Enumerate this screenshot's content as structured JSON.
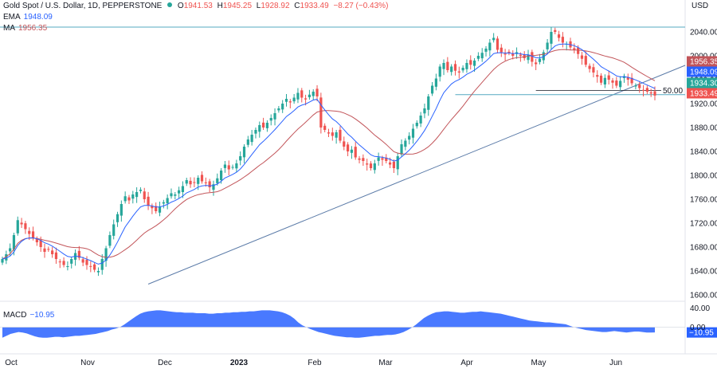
{
  "header": {
    "title": "Gold Spot / U.S. Dollar, 1D, PEPPERSTONE",
    "open_label": "O",
    "open": "1941.53",
    "high_label": "H",
    "high": "1945.25",
    "low_label": "L",
    "low": "1928.92",
    "close_label": "C",
    "close": "1933.49",
    "change": "−8.27 (−0.43%)",
    "currency": "USD"
  },
  "indicators": {
    "ema_label": "EMA",
    "ema_value": "1948.09",
    "ma_label": "MA",
    "ma_value": "1956.35",
    "macd_label": "MACD",
    "macd_value": "−10.95"
  },
  "colors": {
    "up": "#26a69a",
    "down": "#ef5350",
    "ema": "#2962ff",
    "ma": "#c2555a",
    "macd": "#2962ff",
    "trendline": "#5b7ba8",
    "level": "#55a9c2",
    "axis_text": "#131722"
  },
  "chart_data": [
    {
      "type": "candlestick",
      "x_tick_labels": [
        "Oct",
        "Nov",
        "Dec",
        "2023",
        "Feb",
        "Mar",
        "Apr",
        "May",
        "Jun"
      ],
      "ylim": [
        1600,
        2080
      ],
      "y_ticks": [
        "2040.00",
        "2000.00",
        "1960.00",
        "1920.00",
        "1880.00",
        "1840.00",
        "1800.00",
        "1760.00",
        "1720.00",
        "1680.00",
        "1640.00",
        "1600.00"
      ],
      "price_tags": [
        {
          "label": "1956.35",
          "value": 1956.35,
          "color": "#c2555a"
        },
        {
          "label": "1948.09",
          "value": 1948.09,
          "color": "#2962ff"
        },
        {
          "label": "1934.30",
          "value": 1934.3,
          "color": "#26a69a"
        },
        {
          "label": "1933.49",
          "value": 1933.49,
          "color": "#ef5350"
        }
      ],
      "retracement_label": "50.00",
      "close_series": [
        1660,
        1668,
        1678,
        1700,
        1725,
        1718,
        1710,
        1702,
        1695,
        1688,
        1680,
        1672,
        1676,
        1668,
        1660,
        1655,
        1650,
        1648,
        1660,
        1670,
        1662,
        1654,
        1650,
        1648,
        1642,
        1640,
        1660,
        1678,
        1700,
        1718,
        1735,
        1752,
        1765,
        1758,
        1768,
        1772,
        1776,
        1760,
        1750,
        1745,
        1740,
        1748,
        1755,
        1762,
        1770,
        1768,
        1775,
        1782,
        1792,
        1785,
        1788,
        1796,
        1790,
        1787,
        1780,
        1785,
        1795,
        1808,
        1818,
        1810,
        1814,
        1820,
        1832,
        1848,
        1860,
        1868,
        1876,
        1884,
        1880,
        1888,
        1896,
        1904,
        1912,
        1920,
        1928,
        1922,
        1930,
        1938,
        1930,
        1927,
        1935,
        1940,
        1932,
        1880,
        1876,
        1870,
        1866,
        1872,
        1858,
        1848,
        1840,
        1843,
        1830,
        1826,
        1824,
        1818,
        1812,
        1820,
        1830,
        1826,
        1824,
        1818,
        1812,
        1832,
        1852,
        1858,
        1866,
        1878,
        1888,
        1900,
        1912,
        1932,
        1950,
        1962,
        1982,
        1988,
        1976,
        1982,
        1975,
        1972,
        1980,
        1988,
        1985,
        1992,
        2000,
        2005,
        2012,
        2022,
        2030,
        2010,
        2006,
        2002,
        2005,
        2000,
        2006,
        2000,
        1996,
        2002,
        1990,
        1986,
        1995,
        2006,
        2022,
        2040,
        2040,
        2030,
        2022,
        2020,
        2014,
        2010,
        2003,
        1995,
        1985,
        1978,
        1972,
        1965,
        1955,
        1963,
        1960,
        1955,
        1950,
        1958,
        1966,
        1960,
        1954,
        1950,
        1946,
        1942,
        1940,
        1937,
        1933.49
      ],
      "ema_series_label": "EMA",
      "ma_series_label": "MA"
    },
    {
      "type": "area",
      "label": "MACD",
      "ylim": [
        -24,
        44
      ],
      "y_ticks": [
        "40.00",
        "0.00"
      ],
      "last_label": "−10.95",
      "values": [
        -22,
        -18,
        -14,
        -12,
        -10,
        -11,
        -13,
        -16,
        -19,
        -21,
        -22,
        -22,
        -21,
        -20,
        -20,
        -21,
        -20,
        -19,
        -18,
        -18,
        -17,
        -16,
        -15,
        -14,
        -12,
        -10,
        -8,
        -5,
        -3,
        0,
        5,
        11,
        17,
        23,
        28,
        31,
        33,
        34,
        35,
        35,
        34,
        33,
        32,
        31,
        31,
        30,
        30,
        30,
        29,
        29,
        29,
        28,
        28,
        29,
        29,
        30,
        30,
        31,
        31,
        32,
        32,
        33,
        33,
        34,
        35,
        35,
        35,
        34,
        33,
        31,
        28,
        24,
        18,
        10,
        4,
        0,
        -4,
        -7,
        -10,
        -12,
        -14,
        -16,
        -18,
        -19,
        -20,
        -21,
        -21,
        -22,
        -22,
        -21,
        -20,
        -19,
        -18,
        -18,
        -17,
        -16,
        -16,
        -15,
        -13,
        -10,
        -6,
        -1,
        5,
        12,
        19,
        24,
        28,
        31,
        32,
        33,
        33,
        32,
        31,
        30,
        30,
        31,
        32,
        32,
        33,
        32,
        31,
        30,
        29,
        28,
        26,
        24,
        22,
        20,
        18,
        16,
        14,
        13,
        12,
        11,
        10,
        10,
        9,
        8,
        7,
        6,
        3,
        0,
        -2,
        -4,
        -6,
        -7,
        -8,
        -9,
        -10,
        -10,
        -9,
        -8,
        -9,
        -10,
        -11,
        -10,
        -9,
        -9,
        -10,
        -11,
        -11,
        -10.95
      ]
    }
  ]
}
